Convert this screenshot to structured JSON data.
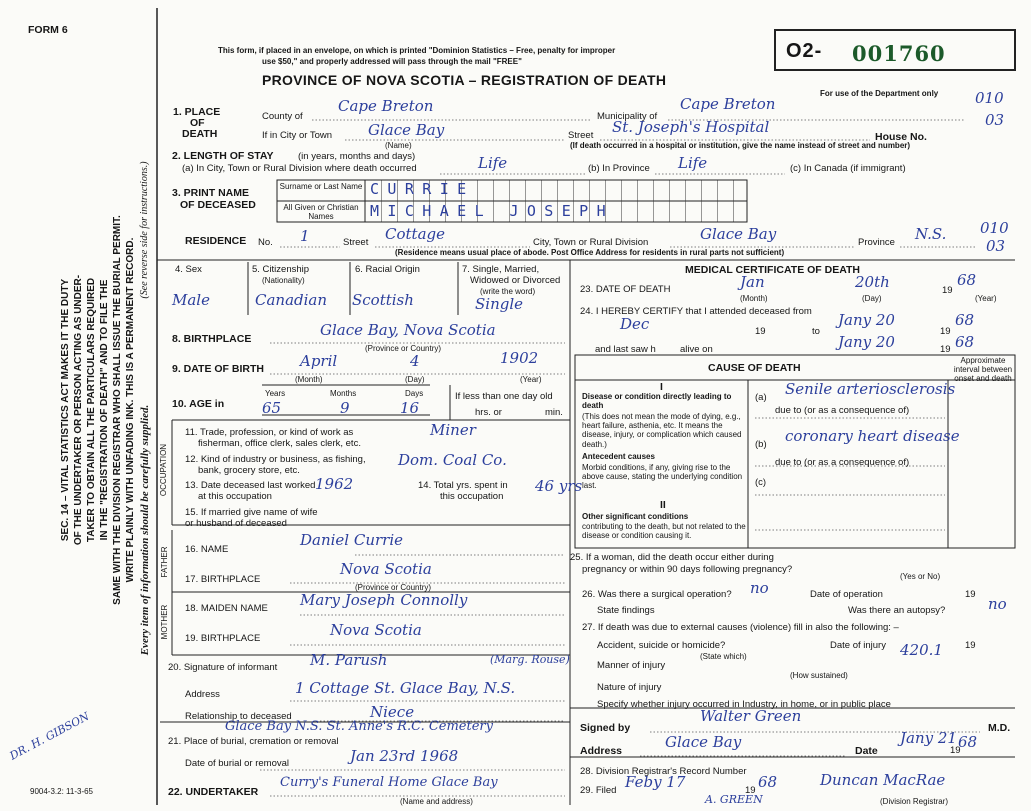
{
  "form_label": "FORM 6",
  "footer_code": "9004-3.2: 11-3-65",
  "header": {
    "notice_line1": "This form, if placed in an envelope, on which is printed \"Dominion Statistics – Free, penalty for improper",
    "notice_line2": "use $50,\" and properly addressed will pass through the mail \"FREE\"",
    "title": "PROVINCE OF NOVA SCOTIA – REGISTRATION OF DEATH",
    "reg_prefix": "O2-",
    "reg_number": "001760",
    "dept_note": "For use of the Department only",
    "dept_codes": [
      "010",
      "03",
      "010",
      "03"
    ]
  },
  "side": {
    "lines": [
      "SEC. 14 – VITAL STATISTICS ACT MAKES IT THE DUTY",
      "OF THE UNDERTAKER OR PERSON ACTING AS UNDER-",
      "TAKER TO OBTAIN ALL THE PARTICULARS REQUIRED",
      "IN THE \"REGISTRATION OF DEATH\" AND TO FILE THE",
      "SAME WITH THE DIVISION REGISTRAR WHO SHALL ISSUE THE BURIAL PERMIT.",
      "WRITE PLAINLY WITH UNFADING INK. THIS IS A PERMANENT RECORD."
    ],
    "instructions": "(See reverse side for instructions.)",
    "note": "Every item of information should be carefully supplied.",
    "margin_signature": "DR. H. GIBSON"
  },
  "place": {
    "label": [
      "1. PLACE",
      "OF",
      "DEATH"
    ],
    "county_label": "County of",
    "county": "Cape Breton",
    "municipality_label": "Municipality of",
    "municipality": "Cape Breton",
    "city_label": "If in City or Town",
    "city": "Glace Bay",
    "city_hint": "(Name)",
    "street_label": "Street",
    "street": "St. Joseph's Hospital",
    "house_label": "House No.",
    "hospital_note": "(If death occurred in a hospital or institution, give the name instead of street and number)"
  },
  "stay": {
    "label": "2. LENGTH OF STAY",
    "hint": "(in years, months and days)",
    "city_label": "(a) In City, Town or Rural Division where death occurred",
    "city": "Life",
    "province_label": "(b) In Province",
    "province": "Life",
    "canada_label": "(c) In Canada (if immigrant)"
  },
  "name": {
    "label": [
      "3. PRINT NAME",
      "OF DECEASED"
    ],
    "surname_label": "Surname or Last Name",
    "surname": "CURRIE",
    "given_label": "All Given or Christian Names",
    "given": "MICHAEL JOSEPH"
  },
  "residence": {
    "label": "RESIDENCE",
    "no_label": "No.",
    "no": "1",
    "street_label": "Street",
    "street": "Cottage",
    "city_label": "City, Town or Rural Division",
    "city": "Glace Bay",
    "province_label": "Province",
    "province": "N.S.",
    "note": "(Residence means usual place of abode. Post Office Address for residents in rural parts not sufficient)"
  },
  "personal": {
    "sex_label": "4. Sex",
    "sex": "Male",
    "citizenship_label": [
      "5. Citizenship",
      "(Nationality)"
    ],
    "citizenship": "Canadian",
    "racial_label": "6. Racial Origin",
    "racial": "Scottish",
    "marital_label": [
      "7. Single, Married,",
      "Widowed or Divorced",
      "(write the word)"
    ],
    "marital": "Single"
  },
  "birth": {
    "place_label": "8. BIRTHPLACE",
    "place": "Glace Bay, Nova Scotia",
    "place_hint": "(Province or Country)",
    "date_label": "9. DATE OF BIRTH",
    "month": "April",
    "day": "4",
    "year": "1902",
    "month_hint": "(Month)",
    "day_hint": "(Day)",
    "year_hint": "(Year)"
  },
  "age": {
    "label": "10. AGE in",
    "years_label": "Years",
    "years": "65",
    "months_label": "Months",
    "months": "9",
    "days_label": "Days",
    "days": "16",
    "under_day": [
      "If less than one day old",
      "hrs. or",
      "min."
    ]
  },
  "occupation": {
    "label": "OCCUPATION",
    "trade_label": [
      "11. Trade, profession, or kind of work as",
      "fisherman, office clerk, sales clerk, etc."
    ],
    "trade": "Miner",
    "industry_label": [
      "12. Kind of industry or business, as fishing,",
      "bank, grocery store, etc."
    ],
    "industry": "Dom. Coal Co.",
    "last_worked_label": [
      "13. Date deceased last worked",
      "at this occupation"
    ],
    "last_worked": "1962",
    "total_label": [
      "14. Total yrs. spent in",
      "this occupation"
    ],
    "total": "46 yrs"
  },
  "spouse": {
    "label": [
      "15. If married give name of wife",
      "or husband of deceased"
    ]
  },
  "father": {
    "label": "FATHER",
    "name_label": "16. NAME",
    "name": "Daniel Currie",
    "birthplace_label": "17. BIRTHPLACE",
    "birthplace": "Nova Scotia",
    "birthplace_hint": "(Province or Country)"
  },
  "mother": {
    "label": "MOTHER",
    "name_label": "18. MAIDEN NAME",
    "name": "Mary Joseph Connolly",
    "birthplace_label": "19. BIRTHPLACE",
    "birthplace": "Nova Scotia"
  },
  "informant": {
    "label": "20. Signature of informant",
    "signature": "M. Parush",
    "signature_note": "(Marg. Rouse)",
    "address_label": "Address",
    "address": "1 Cottage St. Glace Bay, N.S.",
    "relationship_label": "Relationship to deceased",
    "relationship": "Niece"
  },
  "burial": {
    "place_label": "21. Place of burial, cremation or removal",
    "place": "Glace Bay N.S.  St. Anne's R.C. Cemetery",
    "date_label": "Date of burial or removal",
    "date": "Jan 23rd 1968"
  },
  "undertaker": {
    "label": "22. UNDERTAKER",
    "value": "Curry's Funeral Home Glace Bay",
    "hint": "(Name and address)"
  },
  "medical": {
    "title": "MEDICAL CERTIFICATE OF DEATH",
    "death_label": "23. DATE OF DEATH",
    "death_month": "Jan",
    "death_day": "20th",
    "death_year_prefix": "19",
    "death_year": "68",
    "month_hint": "(Month)",
    "day_hint": "(Day)",
    "year_hint": "(Year)",
    "attended_label": "24. I HEREBY CERTIFY that I attended deceased from",
    "attended_from": "Dec",
    "attended_from_prefix": "19",
    "attended_to_label": "to",
    "attended_to": "Jany 20",
    "attended_to_prefix": "19",
    "attended_to_year": "68",
    "last_seen_label": "and last saw h",
    "alive_label": "alive on",
    "last_seen": "Jany 20",
    "last_seen_prefix": "19",
    "last_seen_year": "68"
  },
  "cause": {
    "title": "CAUSE OF DEATH",
    "interval_label": "Approximate interval between onset and death",
    "part1": "I",
    "direct_label": "Disease or condition directly leading to death",
    "direct_note": "(This does not mean the mode of dying, e.g., heart failure, asthenia, etc. It means the disease, injury, or complication which caused death.)",
    "a_label": "(a)",
    "a": "Senile arteriosclerosis",
    "due1": "due to (or as a consequence of)",
    "b_label": "(b)",
    "b": "coronary heart disease",
    "due2": "due to (or as a consequence of)",
    "c_label": "(c)",
    "antecedent_label": "Antecedent causes",
    "antecedent_note": "Morbid conditions, if any, giving rise to the above cause, stating the underlying condition last.",
    "part2": "II",
    "other_label": "Other significant conditions",
    "other_note": "contributing to the death, but not related to the disease or condition causing it."
  },
  "pregnancy": {
    "label": [
      "25. If a woman, did the death occur either during",
      "pregnancy or within 90 days following pregnancy?"
    ],
    "hint": "(Yes or No)"
  },
  "operation": {
    "label": "26. Was there a surgical operation?",
    "value": "no",
    "date_label": "Date of operation",
    "date_prefix": "19",
    "findings_label": "State findings",
    "autopsy_label": "Was there an autopsy?",
    "autopsy": "no"
  },
  "external": {
    "label": "27. If death was due to external causes (violence) fill in also the following: –",
    "accident_label": "Accident, suicide or homicide?",
    "injury_date_label": "Date of injury",
    "injury_date_prefix": "19",
    "state_hint": "(State which)",
    "code": "420.1",
    "manner_label": "Manner of injury",
    "manner_hint": "(How sustained)",
    "nature_label": "Nature of injury",
    "place_label": "Specify whether injury occurred in Industry, in home, or in public place"
  },
  "certifier": {
    "signed_label": "Signed by",
    "signature": "Walter Green",
    "md": "M.D.",
    "address_label": "Address",
    "address": "Glace Bay",
    "date_label": "Date",
    "date": "Jany 21",
    "date_prefix": "19",
    "date_year": "68"
  },
  "registrar": {
    "record_label": "28. Division Registrar's Record Number",
    "filed_label": "29. Filed",
    "filed": "Feby 17",
    "filed_prefix": "19",
    "filed_year": "68",
    "signature": "Duncan MacRae",
    "hint": "(Division Registrar)",
    "initials": "A. GREEN"
  }
}
